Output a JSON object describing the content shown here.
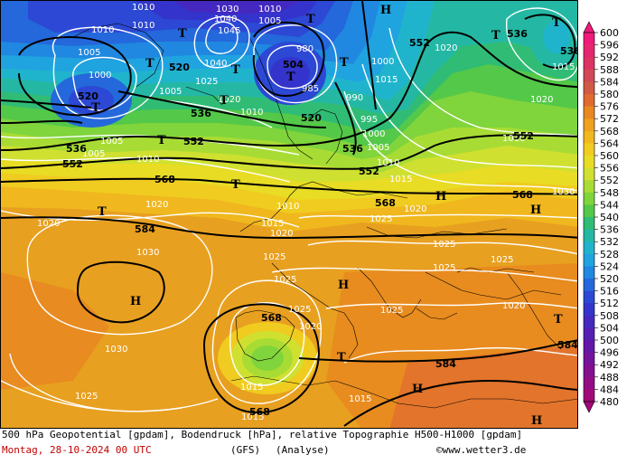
{
  "caption": {
    "title": "500 hPa Geopotential [gpdam], Bodendruck [hPa], relative Topographie H500-H1000 [gpdam]",
    "date": "Montag, 28-10-2024  00 UTC",
    "model": "(GFS)",
    "run": "(Analyse)",
    "copyright": "©www.wetter3.de"
  },
  "scale": {
    "values": [
      600,
      596,
      592,
      588,
      584,
      580,
      576,
      572,
      568,
      564,
      560,
      556,
      552,
      548,
      544,
      540,
      536,
      532,
      528,
      524,
      520,
      516,
      512,
      508,
      504,
      500,
      496,
      492,
      488,
      484,
      480
    ],
    "colors": [
      "#f01a7a",
      "#e6266e",
      "#dc3462",
      "#d24856",
      "#d05a46",
      "#e06a30",
      "#e88820",
      "#eea01e",
      "#f0b81e",
      "#f0cc20",
      "#e8dc24",
      "#d0e030",
      "#a8dc34",
      "#80d43c",
      "#54c848",
      "#30bc74",
      "#24b8a4",
      "#20b4cc",
      "#20a4e0",
      "#2088e0",
      "#2468dc",
      "#2c48d4",
      "#3434cc",
      "#4428c0",
      "#5420b4",
      "#6418a8",
      "#74149c",
      "#841090",
      "#940c84",
      "#a40878"
    ]
  },
  "labels": {
    "geopotential": [
      "536",
      "552",
      "520",
      "520",
      "536",
      "552",
      "504",
      "520",
      "536",
      "552",
      "536",
      "552",
      "552",
      "568",
      "568",
      "568",
      "584",
      "584",
      "584",
      "568",
      "568",
      "536"
    ],
    "pressure": [
      "1010",
      "1010",
      "1005",
      "1000",
      "1005",
      "1005",
      "1005",
      "1010",
      "1010",
      "1030",
      "1040",
      "1045",
      "1040",
      "1025",
      "1020",
      "1010",
      "1005",
      "980",
      "985",
      "990",
      "995",
      "1000",
      "1005",
      "1010",
      "1015",
      "1020",
      "1025",
      "1020",
      "1020",
      "1020",
      "1015",
      "1010",
      "1015",
      "1020",
      "1025",
      "1030",
      "1025",
      "1030",
      "1025",
      "1025",
      "1025",
      "1025",
      "1025",
      "1015",
      "1015",
      "1010",
      "1015",
      "1020",
      "1020",
      "1025",
      "1030",
      "1000",
      "1015",
      "1010",
      "1020"
    ],
    "high": [
      "H",
      "H",
      "H",
      "H",
      "H",
      "H",
      "H"
    ],
    "trough": [
      "T",
      "T",
      "T",
      "T",
      "T",
      "T",
      "T",
      "T",
      "T",
      "T",
      "T",
      "T",
      "T",
      "T",
      "T"
    ]
  }
}
